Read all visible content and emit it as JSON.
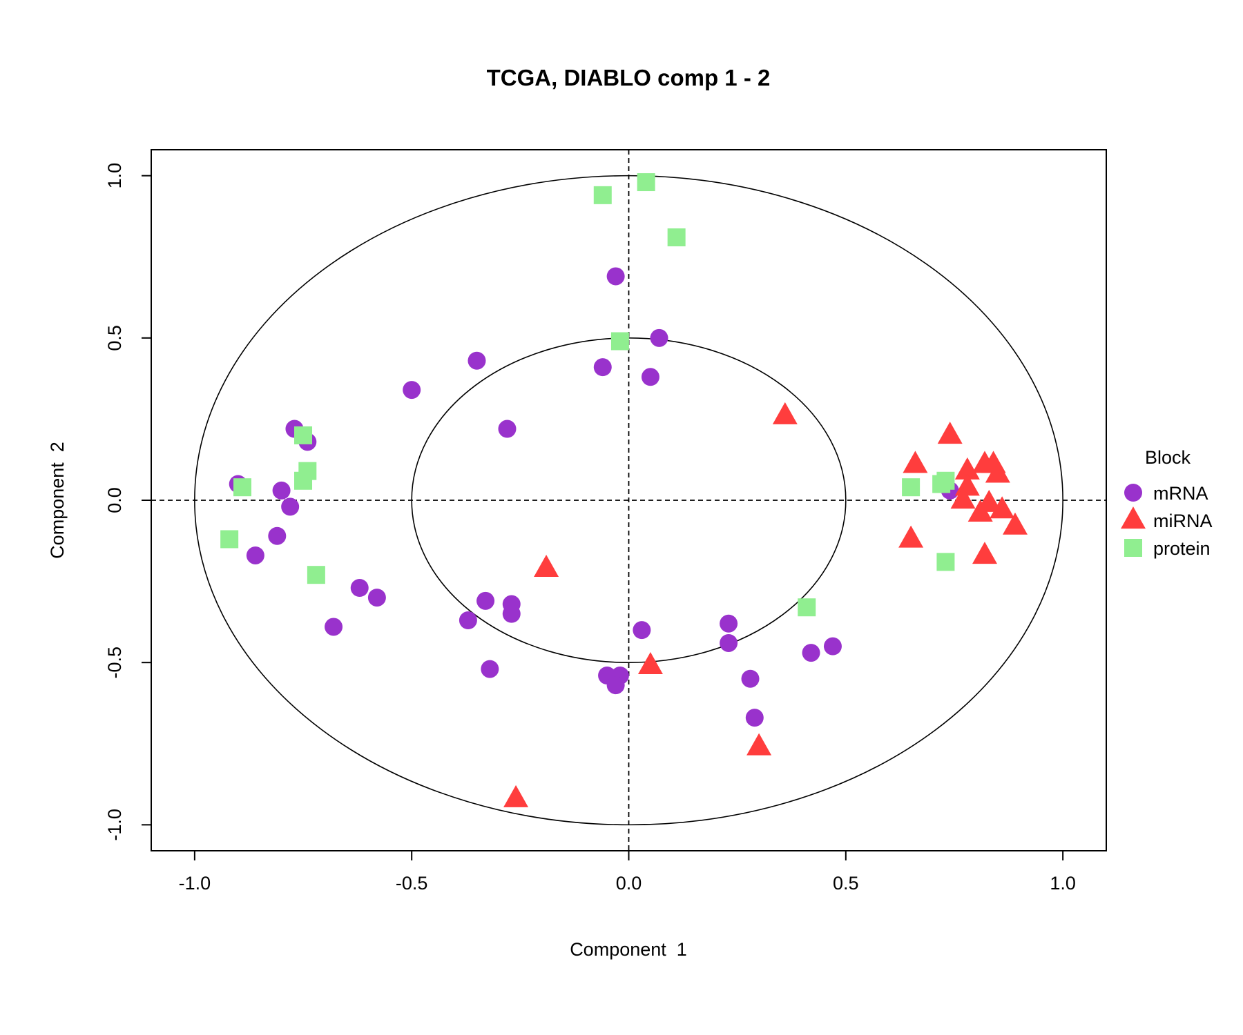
{
  "chart_data": {
    "type": "scatter",
    "title": "TCGA, DIABLO comp 1 - 2",
    "xlabel": "Component  1",
    "ylabel": "Component  2",
    "xlim": [
      -1.1,
      1.1
    ],
    "ylim": [
      -1.08,
      1.08
    ],
    "x_ticks": [
      "-1.0",
      "-0.5",
      "0.0",
      "0.5",
      "1.0"
    ],
    "y_ticks": [
      "-1.0",
      "-0.5",
      "0.0",
      "0.5",
      "1.0"
    ],
    "circles": [
      0.5,
      1.0
    ],
    "reference_lines": {
      "x": 0,
      "y": 0,
      "style": "dashed"
    },
    "grid": false,
    "legend": {
      "title": "Block",
      "position": "right"
    },
    "series": [
      {
        "name": "mRNA",
        "marker": "circle",
        "color": "#9932CC",
        "points": [
          [
            -0.03,
            0.69
          ],
          [
            0.07,
            0.5
          ],
          [
            -0.35,
            0.43
          ],
          [
            -0.06,
            0.41
          ],
          [
            0.05,
            0.38
          ],
          [
            -0.5,
            0.34
          ],
          [
            -0.28,
            0.22
          ],
          [
            -0.77,
            0.22
          ],
          [
            -0.74,
            0.18
          ],
          [
            -0.9,
            0.05
          ],
          [
            -0.8,
            0.03
          ],
          [
            -0.78,
            -0.02
          ],
          [
            -0.81,
            -0.11
          ],
          [
            -0.86,
            -0.17
          ],
          [
            -0.62,
            -0.27
          ],
          [
            -0.58,
            -0.3
          ],
          [
            -0.68,
            -0.39
          ],
          [
            -0.33,
            -0.31
          ],
          [
            -0.37,
            -0.37
          ],
          [
            -0.27,
            -0.32
          ],
          [
            -0.27,
            -0.35
          ],
          [
            -0.32,
            -0.52
          ],
          [
            0.03,
            -0.4
          ],
          [
            -0.05,
            -0.54
          ],
          [
            -0.02,
            -0.54
          ],
          [
            -0.03,
            -0.57
          ],
          [
            0.23,
            -0.38
          ],
          [
            0.23,
            -0.44
          ],
          [
            0.28,
            -0.55
          ],
          [
            0.29,
            -0.67
          ],
          [
            0.42,
            -0.47
          ],
          [
            0.47,
            -0.45
          ],
          [
            0.74,
            0.03
          ]
        ]
      },
      {
        "name": "miRNA",
        "marker": "triangle",
        "color": "#FF3D3D",
        "points": [
          [
            0.36,
            0.26
          ],
          [
            0.74,
            0.2
          ],
          [
            0.66,
            0.11
          ],
          [
            0.78,
            0.09
          ],
          [
            0.82,
            0.11
          ],
          [
            0.84,
            0.11
          ],
          [
            0.85,
            0.08
          ],
          [
            0.78,
            0.04
          ],
          [
            0.77,
            0.0
          ],
          [
            0.83,
            -0.01
          ],
          [
            0.81,
            -0.04
          ],
          [
            0.86,
            -0.03
          ],
          [
            0.89,
            -0.08
          ],
          [
            0.65,
            -0.12
          ],
          [
            0.82,
            -0.17
          ],
          [
            -0.19,
            -0.21
          ],
          [
            0.05,
            -0.51
          ],
          [
            0.3,
            -0.76
          ],
          [
            -0.26,
            -0.92
          ]
        ]
      },
      {
        "name": "protein",
        "marker": "square",
        "color": "#90EE90",
        "points": [
          [
            0.04,
            0.98
          ],
          [
            -0.06,
            0.94
          ],
          [
            0.11,
            0.81
          ],
          [
            -0.02,
            0.49
          ],
          [
            -0.75,
            0.2
          ],
          [
            -0.74,
            0.09
          ],
          [
            -0.75,
            0.06
          ],
          [
            -0.89,
            0.04
          ],
          [
            -0.92,
            -0.12
          ],
          [
            -0.72,
            -0.23
          ],
          [
            0.41,
            -0.33
          ],
          [
            0.65,
            0.04
          ],
          [
            0.72,
            0.05
          ],
          [
            0.73,
            0.06
          ],
          [
            0.73,
            -0.19
          ]
        ]
      }
    ]
  }
}
